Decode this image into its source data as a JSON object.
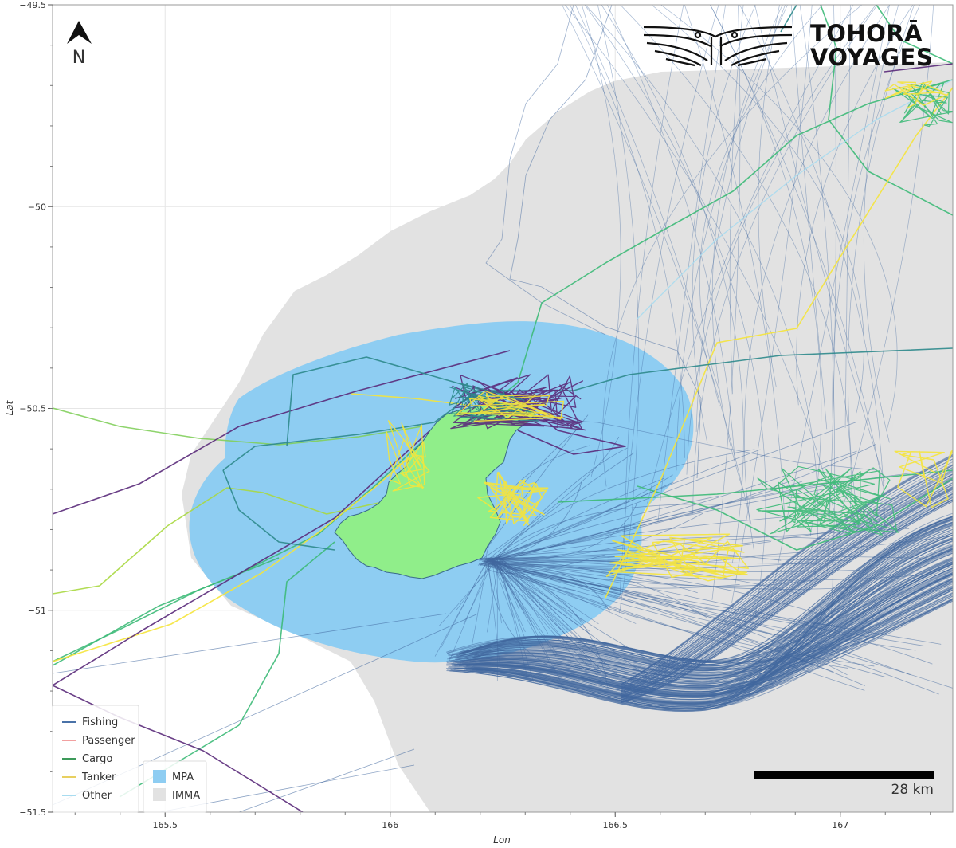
{
  "map": {
    "x_axis_title": "Lon",
    "y_axis_title": "Lat",
    "lon_range": [
      165.25,
      167.25
    ],
    "lat_range": [
      -51.5,
      -49.5
    ],
    "x_ticks": [
      {
        "value": 165.5,
        "label": "165.5"
      },
      {
        "value": 166,
        "label": "166"
      },
      {
        "value": 166.5,
        "label": "166.5"
      },
      {
        "value": 167,
        "label": "167"
      }
    ],
    "y_ticks": [
      {
        "value": -49.5,
        "label": "−49.5"
      },
      {
        "value": -50,
        "label": "−50"
      },
      {
        "value": -50.5,
        "label": "−50.5"
      },
      {
        "value": -51,
        "label": "−51"
      },
      {
        "value": -51.5,
        "label": "−51.5"
      }
    ],
    "north_label": "N",
    "scale_bar_label": "28 km",
    "grid": true
  },
  "brand": {
    "line1": "TOHORĀ",
    "line2": "VOYAGES"
  },
  "legend_vessels": {
    "placement": "bottom-left",
    "items": [
      {
        "label": "Fishing",
        "color": "#4a72a8"
      },
      {
        "label": "Passenger",
        "color": "#f2a0a0"
      },
      {
        "label": "Cargo",
        "color": "#3d9a5a"
      },
      {
        "label": "Tanker",
        "color": "#e8d060"
      },
      {
        "label": "Other",
        "color": "#a8dcf0"
      }
    ]
  },
  "legend_areas": {
    "placement": "bottom-left",
    "items": [
      {
        "label": "MPA",
        "color": "#8ecdf2"
      },
      {
        "label": "IMMA",
        "color": "#e2e2e2"
      }
    ]
  },
  "colors": {
    "island": "#90ee8a",
    "island_outline": "#3a6a8a",
    "mpa": "#8ecdf2",
    "imma": "#e2e2e2",
    "fishing_track": "#41689f",
    "cargo_track": "#3dba78",
    "tanker_track": "#f5e43a",
    "purple_track": "#5a2a7a",
    "teal_track": "#2e8a8c",
    "lime_track": "#a8d840"
  }
}
